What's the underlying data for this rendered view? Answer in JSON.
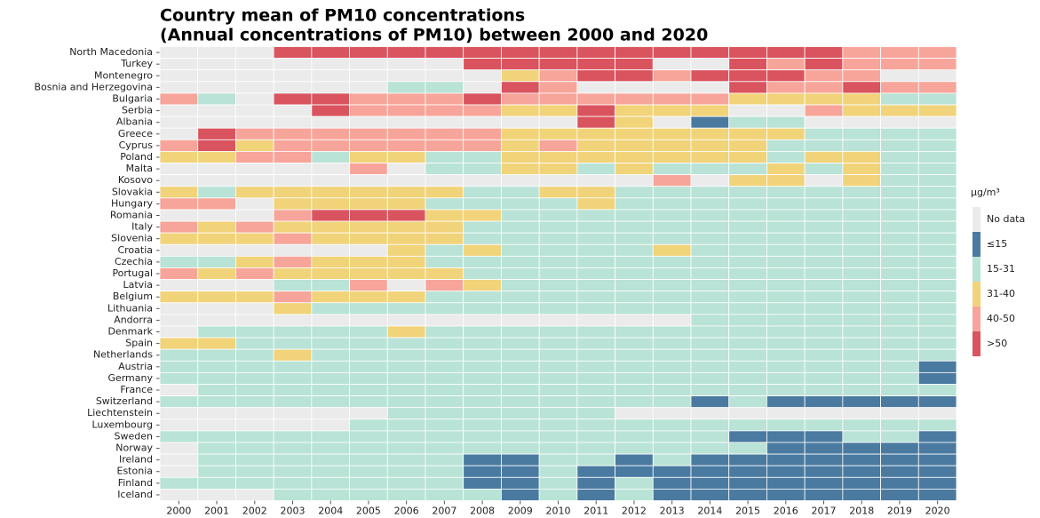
{
  "chart_data": {
    "type": "heatmap",
    "title": [
      "Country mean of PM10 concentrations",
      "(Annual concentrations of PM10) between 2000 and 2020"
    ],
    "x": [
      2000,
      2001,
      2002,
      2003,
      2004,
      2005,
      2006,
      2007,
      2008,
      2009,
      2010,
      2011,
      2012,
      2013,
      2014,
      2015,
      2016,
      2017,
      2018,
      2019,
      2020
    ],
    "y": [
      "North Macedonia",
      "Turkey",
      "Montenegro",
      "Bosnia and Herzegovina",
      "Bulgaria",
      "Serbia",
      "Albania",
      "Greece",
      "Cyprus",
      "Poland",
      "Malta",
      "Kosovo",
      "Slovakia",
      "Hungary",
      "Romania",
      "Italy",
      "Slovenia",
      "Croatia",
      "Czechia",
      "Portugal",
      "Latvia",
      "Belgium",
      "Lithuania",
      "Andorra",
      "Denmark",
      "Spain",
      "Netherlands",
      "Austria",
      "Germany",
      "France",
      "Switzerland",
      "Liechtenstein",
      "Luxembourg",
      "Sweden",
      "Norway",
      "Ireland",
      "Estonia",
      "Finland",
      "Iceland"
    ],
    "legend": {
      "title": "µg/m³",
      "items": [
        {
          "label": "No data",
          "color": "#ebebeb"
        },
        {
          "label": "≤15",
          "color": "#4a7aa0"
        },
        {
          "label": "15-31",
          "color": "#b9e3d6"
        },
        {
          "label": "31-40",
          "color": "#f1d37a"
        },
        {
          "label": "40-50",
          "color": "#f7a59a"
        },
        {
          "label": ">50",
          "color": "#d9545f"
        }
      ]
    },
    "values": [
      [
        "No data",
        "No data",
        "No data",
        ">50",
        ">50",
        ">50",
        ">50",
        ">50",
        ">50",
        ">50",
        ">50",
        ">50",
        ">50",
        ">50",
        ">50",
        ">50",
        ">50",
        ">50",
        "40-50",
        "40-50",
        "40-50"
      ],
      [
        "No data",
        "No data",
        "No data",
        "No data",
        "No data",
        "No data",
        "No data",
        "No data",
        ">50",
        ">50",
        ">50",
        ">50",
        ">50",
        "No data",
        "No data",
        ">50",
        "40-50",
        ">50",
        "40-50",
        "40-50",
        "40-50"
      ],
      [
        "No data",
        "No data",
        "No data",
        "No data",
        "No data",
        "No data",
        "No data",
        "No data",
        "No data",
        "31-40",
        "40-50",
        ">50",
        ">50",
        "40-50",
        ">50",
        ">50",
        ">50",
        "40-50",
        "40-50",
        "No data",
        "No data"
      ],
      [
        "No data",
        "No data",
        "No data",
        "No data",
        "No data",
        "No data",
        "15-31",
        "15-31",
        "No data",
        ">50",
        "40-50",
        "No data",
        "No data",
        "No data",
        "No data",
        ">50",
        "40-50",
        "40-50",
        ">50",
        "40-50",
        "40-50"
      ],
      [
        "40-50",
        "15-31",
        "No data",
        ">50",
        ">50",
        "40-50",
        "40-50",
        "40-50",
        ">50",
        "40-50",
        "40-50",
        "40-50",
        "40-50",
        "40-50",
        "40-50",
        "31-40",
        "31-40",
        "31-40",
        "31-40",
        "15-31",
        "15-31"
      ],
      [
        "No data",
        "No data",
        "No data",
        "No data",
        ">50",
        "40-50",
        "40-50",
        "40-50",
        "40-50",
        "31-40",
        "31-40",
        ">50",
        "31-40",
        "31-40",
        "31-40",
        "No data",
        "No data",
        "40-50",
        "31-40",
        "31-40",
        "31-40"
      ],
      [
        "No data",
        "No data",
        "No data",
        "No data",
        "No data",
        "No data",
        "No data",
        "No data",
        "No data",
        "No data",
        "No data",
        ">50",
        "31-40",
        "No data",
        "≤15",
        "15-31",
        "15-31",
        "No data",
        "No data",
        "No data",
        "No data"
      ],
      [
        "No data",
        ">50",
        "40-50",
        "40-50",
        "40-50",
        "40-50",
        "40-50",
        "40-50",
        "40-50",
        "31-40",
        "31-40",
        "31-40",
        "31-40",
        "31-40",
        "31-40",
        "31-40",
        "31-40",
        "15-31",
        "15-31",
        "15-31",
        "15-31"
      ],
      [
        "40-50",
        ">50",
        "31-40",
        "40-50",
        "40-50",
        "40-50",
        "40-50",
        "40-50",
        "40-50",
        "31-40",
        "40-50",
        "31-40",
        "31-40",
        "31-40",
        "31-40",
        "31-40",
        "15-31",
        "15-31",
        "15-31",
        "15-31",
        "15-31"
      ],
      [
        "31-40",
        "31-40",
        "40-50",
        "40-50",
        "15-31",
        "31-40",
        "31-40",
        "15-31",
        "15-31",
        "31-40",
        "31-40",
        "31-40",
        "31-40",
        "31-40",
        "31-40",
        "31-40",
        "15-31",
        "31-40",
        "31-40",
        "15-31",
        "15-31"
      ],
      [
        "No data",
        "No data",
        "No data",
        "No data",
        "No data",
        "40-50",
        "No data",
        "15-31",
        "15-31",
        "31-40",
        "31-40",
        "15-31",
        "31-40",
        "15-31",
        "15-31",
        "15-31",
        "31-40",
        "15-31",
        "31-40",
        "15-31",
        "15-31"
      ],
      [
        "No data",
        "No data",
        "No data",
        "No data",
        "No data",
        "No data",
        "No data",
        "No data",
        "No data",
        "No data",
        "No data",
        "No data",
        "No data",
        "40-50",
        "No data",
        "31-40",
        "31-40",
        "No data",
        "31-40",
        "15-31",
        "15-31"
      ],
      [
        "31-40",
        "15-31",
        "31-40",
        "31-40",
        "31-40",
        "31-40",
        "31-40",
        "31-40",
        "15-31",
        "15-31",
        "31-40",
        "31-40",
        "15-31",
        "15-31",
        "15-31",
        "15-31",
        "15-31",
        "15-31",
        "15-31",
        "15-31",
        "15-31"
      ],
      [
        "40-50",
        "40-50",
        "No data",
        "31-40",
        "31-40",
        "31-40",
        "31-40",
        "15-31",
        "15-31",
        "15-31",
        "15-31",
        "31-40",
        "15-31",
        "15-31",
        "15-31",
        "15-31",
        "15-31",
        "15-31",
        "15-31",
        "15-31",
        "15-31"
      ],
      [
        "No data",
        "No data",
        "No data",
        "40-50",
        ">50",
        ">50",
        ">50",
        "31-40",
        "31-40",
        "15-31",
        "15-31",
        "15-31",
        "15-31",
        "15-31",
        "15-31",
        "15-31",
        "15-31",
        "15-31",
        "15-31",
        "15-31",
        "15-31"
      ],
      [
        "40-50",
        "31-40",
        "40-50",
        "31-40",
        "31-40",
        "31-40",
        "31-40",
        "31-40",
        "15-31",
        "15-31",
        "15-31",
        "15-31",
        "15-31",
        "15-31",
        "15-31",
        "15-31",
        "15-31",
        "15-31",
        "15-31",
        "15-31",
        "15-31"
      ],
      [
        "31-40",
        "31-40",
        "31-40",
        "40-50",
        "31-40",
        "31-40",
        "31-40",
        "31-40",
        "15-31",
        "15-31",
        "15-31",
        "15-31",
        "15-31",
        "15-31",
        "15-31",
        "15-31",
        "15-31",
        "15-31",
        "15-31",
        "15-31",
        "15-31"
      ],
      [
        "No data",
        "No data",
        "No data",
        "No data",
        "No data",
        "No data",
        "31-40",
        "15-31",
        "31-40",
        "15-31",
        "15-31",
        "15-31",
        "15-31",
        "31-40",
        "15-31",
        "15-31",
        "15-31",
        "15-31",
        "15-31",
        "15-31",
        "15-31"
      ],
      [
        "15-31",
        "15-31",
        "31-40",
        "40-50",
        "31-40",
        "31-40",
        "31-40",
        "15-31",
        "15-31",
        "15-31",
        "15-31",
        "15-31",
        "15-31",
        "15-31",
        "15-31",
        "15-31",
        "15-31",
        "15-31",
        "15-31",
        "15-31",
        "15-31"
      ],
      [
        "40-50",
        "31-40",
        "40-50",
        "31-40",
        "31-40",
        "31-40",
        "31-40",
        "31-40",
        "15-31",
        "15-31",
        "15-31",
        "15-31",
        "15-31",
        "15-31",
        "15-31",
        "15-31",
        "15-31",
        "15-31",
        "15-31",
        "15-31",
        "15-31"
      ],
      [
        "No data",
        "No data",
        "No data",
        "15-31",
        "15-31",
        "40-50",
        "No data",
        "40-50",
        "31-40",
        "15-31",
        "15-31",
        "15-31",
        "15-31",
        "15-31",
        "15-31",
        "15-31",
        "15-31",
        "15-31",
        "15-31",
        "15-31",
        "15-31"
      ],
      [
        "31-40",
        "31-40",
        "31-40",
        "40-50",
        "31-40",
        "31-40",
        "31-40",
        "15-31",
        "15-31",
        "15-31",
        "15-31",
        "15-31",
        "15-31",
        "15-31",
        "15-31",
        "15-31",
        "15-31",
        "15-31",
        "15-31",
        "15-31",
        "15-31"
      ],
      [
        "No data",
        "No data",
        "No data",
        "31-40",
        "15-31",
        "15-31",
        "15-31",
        "15-31",
        "15-31",
        "15-31",
        "15-31",
        "15-31",
        "15-31",
        "15-31",
        "15-31",
        "15-31",
        "15-31",
        "15-31",
        "15-31",
        "15-31",
        "15-31"
      ],
      [
        "No data",
        "No data",
        "No data",
        "No data",
        "No data",
        "No data",
        "No data",
        "No data",
        "No data",
        "No data",
        "No data",
        "No data",
        "No data",
        "No data",
        "15-31",
        "15-31",
        "15-31",
        "15-31",
        "15-31",
        "15-31",
        "15-31"
      ],
      [
        "No data",
        "15-31",
        "15-31",
        "15-31",
        "15-31",
        "15-31",
        "31-40",
        "15-31",
        "15-31",
        "15-31",
        "15-31",
        "15-31",
        "15-31",
        "15-31",
        "15-31",
        "15-31",
        "15-31",
        "15-31",
        "15-31",
        "15-31",
        "15-31"
      ],
      [
        "31-40",
        "31-40",
        "15-31",
        "15-31",
        "15-31",
        "15-31",
        "15-31",
        "15-31",
        "15-31",
        "15-31",
        "15-31",
        "15-31",
        "15-31",
        "15-31",
        "15-31",
        "15-31",
        "15-31",
        "15-31",
        "15-31",
        "15-31",
        "15-31"
      ],
      [
        "15-31",
        "15-31",
        "15-31",
        "31-40",
        "15-31",
        "15-31",
        "15-31",
        "15-31",
        "15-31",
        "15-31",
        "15-31",
        "15-31",
        "15-31",
        "15-31",
        "15-31",
        "15-31",
        "15-31",
        "15-31",
        "15-31",
        "15-31",
        "15-31"
      ],
      [
        "15-31",
        "15-31",
        "15-31",
        "15-31",
        "15-31",
        "15-31",
        "15-31",
        "15-31",
        "15-31",
        "15-31",
        "15-31",
        "15-31",
        "15-31",
        "15-31",
        "15-31",
        "15-31",
        "15-31",
        "15-31",
        "15-31",
        "15-31",
        "≤15"
      ],
      [
        "15-31",
        "15-31",
        "15-31",
        "15-31",
        "15-31",
        "15-31",
        "15-31",
        "15-31",
        "15-31",
        "15-31",
        "15-31",
        "15-31",
        "15-31",
        "15-31",
        "15-31",
        "15-31",
        "15-31",
        "15-31",
        "15-31",
        "15-31",
        "≤15"
      ],
      [
        "No data",
        "15-31",
        "15-31",
        "15-31",
        "15-31",
        "15-31",
        "15-31",
        "15-31",
        "15-31",
        "15-31",
        "15-31",
        "15-31",
        "15-31",
        "15-31",
        "15-31",
        "15-31",
        "15-31",
        "15-31",
        "15-31",
        "15-31",
        "15-31"
      ],
      [
        "15-31",
        "15-31",
        "15-31",
        "15-31",
        "15-31",
        "15-31",
        "15-31",
        "15-31",
        "15-31",
        "15-31",
        "15-31",
        "15-31",
        "15-31",
        "15-31",
        "≤15",
        "15-31",
        "≤15",
        "≤15",
        "≤15",
        "≤15",
        "≤15"
      ],
      [
        "No data",
        "No data",
        "No data",
        "No data",
        "No data",
        "No data",
        "15-31",
        "15-31",
        "15-31",
        "15-31",
        "15-31",
        "15-31",
        "No data",
        "No data",
        "No data",
        "No data",
        "No data",
        "No data",
        "No data",
        "No data",
        "No data"
      ],
      [
        "No data",
        "No data",
        "No data",
        "No data",
        "No data",
        "15-31",
        "15-31",
        "15-31",
        "15-31",
        "15-31",
        "15-31",
        "15-31",
        "15-31",
        "15-31",
        "15-31",
        "15-31",
        "15-31",
        "15-31",
        "15-31",
        "15-31",
        "15-31"
      ],
      [
        "15-31",
        "15-31",
        "15-31",
        "15-31",
        "15-31",
        "15-31",
        "15-31",
        "15-31",
        "15-31",
        "15-31",
        "15-31",
        "15-31",
        "15-31",
        "15-31",
        "15-31",
        "≤15",
        "≤15",
        "≤15",
        "15-31",
        "15-31",
        "≤15"
      ],
      [
        "No data",
        "15-31",
        "15-31",
        "15-31",
        "15-31",
        "15-31",
        "15-31",
        "15-31",
        "15-31",
        "15-31",
        "15-31",
        "15-31",
        "15-31",
        "15-31",
        "15-31",
        "15-31",
        "≤15",
        "≤15",
        "≤15",
        "≤15",
        "≤15"
      ],
      [
        "No data",
        "15-31",
        "15-31",
        "15-31",
        "15-31",
        "15-31",
        "15-31",
        "15-31",
        "≤15",
        "≤15",
        "15-31",
        "15-31",
        "≤15",
        "15-31",
        "≤15",
        "≤15",
        "≤15",
        "≤15",
        "≤15",
        "≤15",
        "≤15"
      ],
      [
        "No data",
        "15-31",
        "15-31",
        "15-31",
        "15-31",
        "15-31",
        "15-31",
        "15-31",
        "≤15",
        "≤15",
        "15-31",
        "≤15",
        "≤15",
        "≤15",
        "≤15",
        "≤15",
        "≤15",
        "≤15",
        "≤15",
        "≤15",
        "≤15"
      ],
      [
        "15-31",
        "15-31",
        "15-31",
        "15-31",
        "15-31",
        "15-31",
        "15-31",
        "15-31",
        "≤15",
        "≤15",
        "15-31",
        "≤15",
        "15-31",
        "≤15",
        "≤15",
        "≤15",
        "≤15",
        "≤15",
        "≤15",
        "≤15",
        "≤15"
      ],
      [
        "No data",
        "No data",
        "No data",
        "15-31",
        "15-31",
        "15-31",
        "15-31",
        "15-31",
        "15-31",
        "≤15",
        "15-31",
        "≤15",
        "15-31",
        "≤15",
        "≤15",
        "≤15",
        "≤15",
        "≤15",
        "≤15",
        "≤15",
        "≤15"
      ]
    ]
  }
}
